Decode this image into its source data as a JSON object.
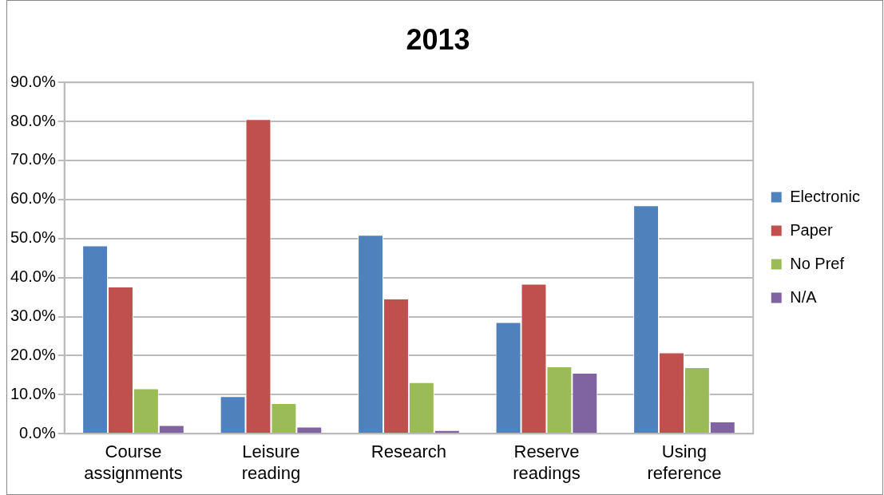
{
  "chart_data": {
    "type": "bar",
    "title": "2013",
    "categories": [
      "Course assignments",
      "Leisure reading",
      "Research",
      "Reserve readings",
      "Using reference"
    ],
    "series": [
      {
        "name": "Electronic",
        "color": "#4f81bd",
        "values": [
          48.2,
          9.6,
          50.9,
          28.6,
          58.5
        ]
      },
      {
        "name": "Paper",
        "color": "#c0504d",
        "values": [
          37.7,
          80.6,
          34.6,
          38.4,
          20.8
        ]
      },
      {
        "name": "No Pref",
        "color": "#9bbb59",
        "values": [
          11.6,
          7.8,
          13.2,
          17.2,
          17.0
        ]
      },
      {
        "name": "N/A",
        "color": "#8064a2",
        "values": [
          2.2,
          1.8,
          0.9,
          15.6,
          3.1
        ]
      }
    ],
    "ylim": [
      0,
      90
    ],
    "yticks": [
      {
        "value": 0,
        "label": "0.0%"
      },
      {
        "value": 10,
        "label": "10.0%"
      },
      {
        "value": 20,
        "label": "20.0%"
      },
      {
        "value": 30,
        "label": "30.0%"
      },
      {
        "value": 40,
        "label": "40.0%"
      },
      {
        "value": 50,
        "label": "50.0%"
      },
      {
        "value": 60,
        "label": "60.0%"
      },
      {
        "value": 70,
        "label": "70.0%"
      },
      {
        "value": 80,
        "label": "80.0%"
      },
      {
        "value": 90,
        "label": "90.0%"
      }
    ],
    "grid": "y",
    "legend": "right"
  }
}
